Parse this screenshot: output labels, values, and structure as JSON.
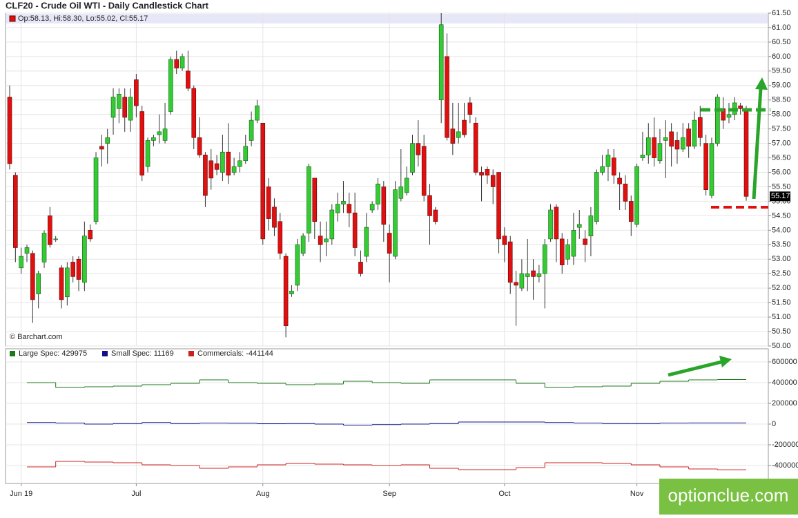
{
  "chart_data": [
    {
      "type": "candlestick",
      "title": "CLF20 - Crude Oil WTI - Daily Candlestick Chart",
      "legend": "Op:58.13, Hi:58.30, Lo:55.02, Cl:55.17",
      "source": "© Barchart.com",
      "up_color": "#33cc33",
      "down_color": "#e01010",
      "grid": true,
      "open": [
        58.6,
        55.9,
        52.7,
        53.2,
        53.2,
        51.8,
        52.9,
        54.5,
        53.7,
        52.7,
        51.7,
        52.9,
        53.0,
        52.2,
        54.0,
        54.3,
        56.9,
        57.0,
        57.9,
        58.2,
        58.6,
        57.8,
        59.2,
        58.1,
        56.2,
        57.1,
        57.3,
        57.1,
        58.1,
        59.9,
        59.6,
        59.5,
        58.9,
        57.2,
        56.6,
        56.4,
        56.3,
        56.0,
        56.7,
        56.0,
        56.2,
        56.4,
        57.1,
        57.8,
        57.7,
        55.5,
        54.8,
        54.3,
        53.1,
        51.8,
        52.1,
        53.2,
        53.9,
        55.8,
        53.8,
        53.6,
        53.7,
        54.6,
        54.9,
        54.9,
        54.6,
        52.9,
        53.1,
        54.7,
        54.9,
        55.5,
        53.9,
        53.1,
        55.1,
        55.3,
        56.0,
        57.0,
        56.9,
        55.2,
        54.7,
        58.5,
        60.0,
        57.5,
        57.2,
        57.8,
        58.4,
        57.7,
        56.0,
        56.1,
        55.9,
        56.0,
        53.8,
        53.6,
        52.2,
        52.0,
        52.4,
        52.6,
        52.4,
        52.5,
        53.7,
        54.8,
        53.7,
        53.0,
        53.1,
        54.1,
        53.7,
        53.8,
        54.3,
        56.0,
        56.2,
        56.5,
        55.8,
        55.6,
        55.0,
        54.2,
        56.5,
        56.6,
        57.2,
        56.4,
        57.1,
        57.4,
        57.1,
        56.8,
        57.5,
        56.9,
        57.9,
        57.0,
        55.2,
        57.0,
        58.2,
        57.9,
        58.0,
        58.3,
        58.13
      ],
      "high": [
        59.0,
        56.0,
        53.4,
        53.5,
        53.3,
        52.6,
        54.0,
        54.8,
        53.8,
        52.8,
        52.9,
        53.1,
        53.1,
        54.3,
        54.2,
        56.7,
        57.3,
        57.5,
        58.9,
        58.9,
        58.9,
        58.9,
        59.4,
        58.3,
        57.2,
        57.3,
        58.0,
        58.4,
        60.0,
        60.2,
        60.1,
        60.2,
        59.0,
        57.9,
        56.7,
        56.8,
        56.6,
        57.3,
        57.7,
        56.5,
        56.7,
        57.3,
        58.1,
        58.5,
        57.7,
        55.8,
        55.1,
        54.6,
        53.2,
        52.1,
        53.7,
        53.9,
        56.3,
        55.8,
        54.3,
        54.3,
        54.9,
        55.3,
        55.7,
        55.3,
        55.3,
        53.3,
        54.6,
        55.0,
        55.8,
        55.7,
        54.2,
        55.7,
        56.8,
        56.2,
        57.3,
        57.8,
        57.3,
        55.6,
        54.8,
        61.5,
        60.8,
        58.4,
        58.4,
        58.4,
        58.6,
        57.9,
        56.2,
        56.2,
        56.1,
        56.0,
        54.1,
        53.8,
        52.6,
        53.0,
        53.7,
        53.0,
        52.8,
        53.7,
        54.9,
        54.9,
        53.9,
        53.7,
        54.6,
        54.7,
        54.0,
        54.8,
        56.1,
        56.6,
        56.8,
        56.8,
        56.0,
        55.9,
        55.2,
        56.3,
        57.4,
        57.7,
        57.9,
        57.5,
        57.8,
        57.7,
        57.4,
        57.7,
        57.7,
        58.1,
        58.3,
        57.3,
        57.2,
        58.7,
        58.6,
        58.4,
        58.6,
        58.4,
        58.3
      ],
      "low": [
        56.1,
        52.9,
        52.5,
        52.9,
        50.8,
        51.3,
        52.7,
        53.4,
        53.6,
        51.3,
        51.4,
        52.2,
        51.9,
        51.9,
        53.6,
        54.2,
        56.2,
        56.3,
        57.3,
        57.7,
        57.4,
        57.4,
        57.9,
        55.7,
        56.0,
        56.9,
        57.0,
        57.0,
        58.0,
        59.4,
        59.5,
        58.8,
        56.8,
        56.5,
        54.8,
        55.4,
        55.9,
        55.7,
        55.6,
        55.9,
        56.0,
        56.3,
        56.9,
        57.7,
        53.5,
        54.0,
        53.8,
        53.0,
        50.3,
        51.7,
        51.9,
        53.1,
        53.6,
        53.7,
        52.9,
        53.1,
        53.5,
        54.3,
        54.6,
        54.1,
        53.1,
        52.4,
        52.9,
        54.6,
        54.7,
        53.6,
        52.2,
        53.0,
        55.0,
        55.2,
        55.9,
        56.2,
        55.0,
        53.5,
        54.2,
        57.7,
        57.1,
        56.6,
        57.0,
        57.2,
        57.7,
        55.9,
        55.0,
        55.6,
        54.9,
        53.2,
        52.9,
        51.8,
        50.7,
        51.9,
        51.9,
        51.6,
        52.2,
        51.3,
        53.6,
        52.9,
        52.5,
        52.8,
        52.8,
        53.7,
        52.9,
        53.1,
        54.2,
        55.9,
        55.7,
        55.6,
        54.7,
        54.7,
        53.8,
        54.1,
        56.4,
        56.3,
        56.2,
        56.3,
        55.8,
        56.2,
        56.3,
        56.7,
        56.5,
        56.8,
        56.9,
        55.2,
        55.1,
        56.9,
        57.5,
        57.7,
        57.8,
        58.0,
        55.02
      ],
      "close": [
        56.3,
        53.4,
        53.1,
        53.4,
        51.6,
        52.5,
        53.9,
        53.5,
        53.7,
        51.6,
        52.7,
        52.4,
        52.3,
        53.8,
        53.7,
        56.5,
        56.8,
        57.2,
        58.6,
        58.7,
        57.9,
        58.6,
        58.3,
        55.9,
        57.1,
        57.2,
        57.4,
        57.5,
        59.9,
        59.6,
        60.0,
        58.9,
        57.2,
        56.6,
        55.2,
        55.8,
        56.1,
        56.7,
        55.9,
        56.2,
        56.4,
        56.9,
        57.8,
        58.3,
        53.7,
        54.4,
        54.1,
        53.2,
        50.7,
        51.9,
        53.5,
        53.8,
        56.2,
        54.3,
        53.5,
        53.7,
        54.7,
        54.9,
        55.0,
        54.6,
        53.4,
        52.5,
        54.1,
        54.9,
        55.6,
        54.2,
        53.2,
        55.4,
        55.5,
        55.8,
        57.0,
        56.6,
        55.2,
        54.5,
        54.3,
        61.1,
        57.2,
        57.0,
        57.4,
        57.3,
        58.0,
        56.0,
        55.9,
        55.9,
        55.5,
        53.7,
        53.5,
        52.2,
        52.1,
        52.5,
        52.5,
        52.4,
        52.5,
        53.5,
        54.7,
        53.7,
        52.8,
        53.5,
        54.0,
        54.2,
        53.5,
        54.5,
        56.0,
        56.2,
        56.6,
        55.9,
        55.6,
        55.0,
        54.3,
        56.2,
        56.6,
        57.2,
        56.5,
        57.0,
        57.2,
        56.9,
        56.8,
        57.2,
        56.9,
        57.8,
        57.2,
        55.4,
        57.0,
        58.6,
        57.8,
        58.0,
        58.4,
        58.2,
        55.17
      ],
      "xlim": [
        -0.72,
        131.84
      ],
      "xticks": [
        {
          "value": 2,
          "label": "Jun 19"
        },
        {
          "value": 22,
          "label": "Jul"
        },
        {
          "value": 44,
          "label": "Aug"
        },
        {
          "value": 66,
          "label": "Sep"
        },
        {
          "value": 86,
          "label": "Oct"
        },
        {
          "value": 109,
          "label": "Nov"
        }
      ],
      "ylim": [
        50,
        61.5
      ],
      "yticks": [
        {
          "value": 50,
          "label": "50.00"
        },
        {
          "value": 50.5,
          "label": "50.50"
        },
        {
          "value": 51,
          "label": "51.00"
        },
        {
          "value": 51.5,
          "label": "51.50"
        },
        {
          "value": 52,
          "label": "52.00"
        },
        {
          "value": 52.5,
          "label": "52.50"
        },
        {
          "value": 53,
          "label": "53.00"
        },
        {
          "value": 53.5,
          "label": "53.50"
        },
        {
          "value": 54,
          "label": "54.00"
        },
        {
          "value": 54.5,
          "label": "54.50"
        },
        {
          "value": 55,
          "label": "55.00"
        },
        {
          "value": 55.5,
          "label": "55.50"
        },
        {
          "value": 56,
          "label": "56.00"
        },
        {
          "value": 56.5,
          "label": "56.50"
        },
        {
          "value": 57,
          "label": "57.00"
        },
        {
          "value": 57.5,
          "label": "57.50"
        },
        {
          "value": 58,
          "label": "58.00"
        },
        {
          "value": 58.5,
          "label": "58.50"
        },
        {
          "value": 59,
          "label": "59.00"
        },
        {
          "value": 59.5,
          "label": "59.50"
        },
        {
          "value": 60,
          "label": "60.00"
        },
        {
          "value": 60.5,
          "label": "60.50"
        },
        {
          "value": 61,
          "label": "61.00"
        },
        {
          "value": 61.5,
          "label": "61.50"
        }
      ]
    },
    {
      "type": "step",
      "grid": true,
      "x": [
        3,
        8,
        13,
        18,
        23,
        28,
        33,
        38,
        43,
        48,
        53,
        58,
        63,
        68,
        73,
        78,
        83,
        88,
        93,
        98,
        103,
        108,
        113,
        118,
        123,
        128
      ],
      "series": [
        {
          "name": "Large Spec: 429975",
          "color": "#1a7a1a",
          "values": [
            400000,
            353000,
            360000,
            367000,
            380000,
            393000,
            427000,
            400000,
            393000,
            380000,
            387000,
            413000,
            400000,
            393000,
            427000,
            427000,
            427000,
            393000,
            353000,
            360000,
            367000,
            393000,
            413000,
            427000,
            429975,
            429975
          ]
        },
        {
          "name": "Small Spec: 11169",
          "color": "#10108a",
          "values": [
            15000,
            10000,
            0,
            5000,
            15000,
            5000,
            10000,
            8000,
            3000,
            5000,
            0,
            -10000,
            -5000,
            0,
            5000,
            20000,
            20000,
            20000,
            15000,
            10000,
            5000,
            5000,
            10000,
            11000,
            11169,
            11169
          ]
        },
        {
          "name": "Commercials: -441144",
          "color": "#cc2020",
          "values": [
            -413000,
            -360000,
            -367000,
            -373000,
            -393000,
            -400000,
            -427000,
            -413000,
            -393000,
            -380000,
            -387000,
            -393000,
            -400000,
            -393000,
            -427000,
            -440000,
            -440000,
            -420000,
            -373000,
            -373000,
            -380000,
            -393000,
            -413000,
            -433000,
            -441144,
            -441144
          ]
        }
      ],
      "ylim": [
        -573300,
        726700
      ],
      "yticks": [
        -400000,
        -200000,
        0,
        200000,
        400000,
        600000
      ]
    }
  ],
  "watermark": "optionclue.com"
}
